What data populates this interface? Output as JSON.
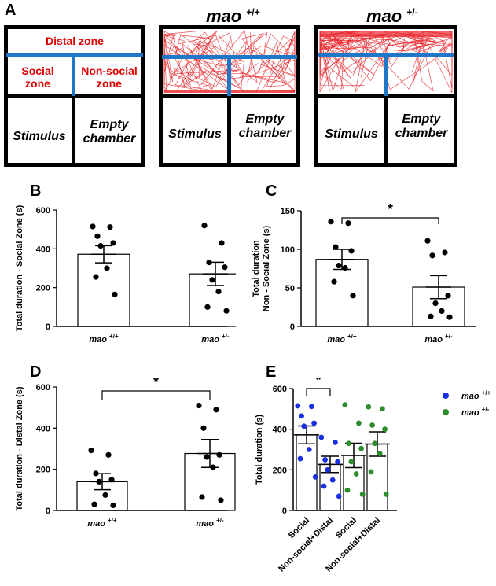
{
  "panel_letters": {
    "a": "A",
    "b": "B",
    "c": "C",
    "d": "D",
    "e": "E"
  },
  "panel_a": {
    "schematic": {
      "distal": "Distal zone",
      "social": "Social\nzone",
      "nonsocial": "Non-social\nzone",
      "stimulus": "Stimulus",
      "empty": "Empty\nchamber"
    },
    "wt": {
      "title": "mao",
      "sup": "+/+",
      "stimulus": "Stimulus",
      "empty": "Empty\nchamber"
    },
    "het": {
      "title": "mao",
      "sup": "+/-",
      "stimulus": "Stimulus",
      "empty": "Empty\nchamber"
    },
    "colors": {
      "zone_text": "#e00000",
      "zone_line": "#1f77c8",
      "track": "#e8242a"
    }
  },
  "chart_data": [
    {
      "panel": "B",
      "type": "bar",
      "ylabel": "Total duration - Social Zone (s)",
      "ylim": [
        0,
        600
      ],
      "yticks": [
        0,
        200,
        400,
        600
      ],
      "categories": [
        "mao +/+",
        "mao +/-"
      ],
      "values": [
        372,
        271
      ],
      "sem": [
        44,
        60
      ],
      "points": [
        [
          515,
          512,
          465,
          430,
          415,
          300,
          255,
          165
        ],
        [
          520,
          430,
          330,
          305,
          240,
          180,
          100,
          80
        ]
      ],
      "significance": null
    },
    {
      "panel": "C",
      "type": "bar",
      "ylabel": "Total duration\nNon - Social Zone (s)",
      "ylim": [
        0,
        150
      ],
      "yticks": [
        0,
        50,
        100,
        150
      ],
      "categories": [
        "mao +/+",
        "mao +/-"
      ],
      "values": [
        87,
        51
      ],
      "sem": [
        13,
        15
      ],
      "points": [
        [
          136,
          134,
          103,
          98,
          79,
          76,
          58,
          40
        ],
        [
          111,
          96,
          92,
          40,
          30,
          20,
          13,
          12
        ]
      ],
      "significance": "*"
    },
    {
      "panel": "D",
      "type": "bar",
      "ylabel": "Total duration - Distal Zone (s)",
      "ylim": [
        0,
        600
      ],
      "yticks": [
        0,
        200,
        400,
        600
      ],
      "categories": [
        "mao +/+",
        "mao +/-"
      ],
      "values": [
        140,
        277
      ],
      "sem": [
        39,
        68
      ],
      "points": [
        [
          292,
          270,
          180,
          150,
          140,
          75,
          30,
          25
        ],
        [
          510,
          490,
          400,
          270,
          260,
          210,
          65,
          50
        ]
      ],
      "significance": "*"
    },
    {
      "panel": "E",
      "type": "bar",
      "ylabel": "Total duration (s)",
      "ylim": [
        0,
        600
      ],
      "yticks": [
        0,
        200,
        400,
        600
      ],
      "categories": [
        "Social",
        "Non-social+Distal",
        "Social",
        "Non-social+Distal"
      ],
      "values": [
        372,
        227,
        271,
        327
      ],
      "sem": [
        44,
        40,
        60,
        60
      ],
      "groups": [
        0,
        0,
        1,
        1
      ],
      "points": [
        [
          515,
          512,
          465,
          430,
          415,
          300,
          255,
          165
        ],
        [
          360,
          335,
          250,
          240,
          200,
          150,
          120,
          70
        ],
        [
          520,
          430,
          330,
          305,
          240,
          180,
          100,
          80
        ],
        [
          510,
          500,
          420,
          400,
          330,
          280,
          190,
          80
        ]
      ],
      "significance": "*",
      "legend": [
        {
          "name": "mao",
          "sup": "+/+",
          "color": "#1a2fe0"
        },
        {
          "name": "mao",
          "sup": "+/-",
          "color": "#2e8b2e"
        }
      ]
    }
  ]
}
